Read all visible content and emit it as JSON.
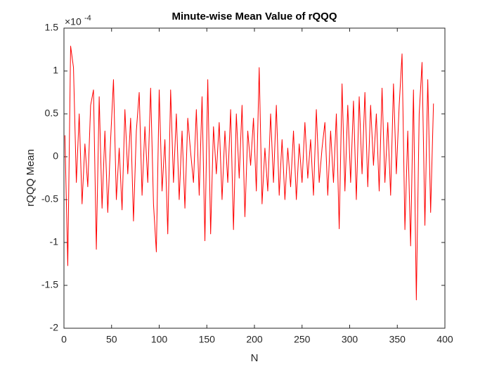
{
  "chart_data": {
    "type": "line",
    "title": "Minute-wise Mean Value of rQQQ",
    "x_label": "N",
    "y_label": "rQQQ Mean",
    "y_multiplier": {
      "base": "×10",
      "exponent": "-4"
    },
    "color": "#ff0000",
    "x": [
      1,
      4,
      7,
      10,
      13,
      16,
      19,
      22,
      25,
      28,
      31,
      34,
      37,
      40,
      43,
      46,
      49,
      52,
      55,
      58,
      61,
      64,
      67,
      70,
      73,
      76,
      79,
      82,
      85,
      88,
      91,
      94,
      97,
      100,
      103,
      106,
      109,
      112,
      115,
      118,
      121,
      124,
      127,
      130,
      133,
      136,
      139,
      142,
      145,
      148,
      151,
      154,
      157,
      160,
      163,
      166,
      169,
      172,
      175,
      178,
      181,
      184,
      187,
      190,
      193,
      196,
      199,
      202,
      205,
      208,
      211,
      214,
      217,
      220,
      223,
      226,
      229,
      232,
      235,
      238,
      241,
      244,
      247,
      250,
      253,
      256,
      259,
      262,
      265,
      268,
      271,
      274,
      277,
      280,
      283,
      286,
      289,
      292,
      295,
      298,
      301,
      304,
      307,
      310,
      313,
      316,
      319,
      322,
      325,
      328,
      331,
      334,
      337,
      340,
      343,
      346,
      349,
      352,
      355,
      358,
      361,
      364,
      367,
      370,
      373,
      376,
      379,
      382,
      385,
      388
    ],
    "values": [
      0.25,
      -1.27,
      1.29,
      1.04,
      -0.3,
      0.5,
      -0.55,
      0.15,
      -0.35,
      0.6,
      0.78,
      -1.08,
      0.7,
      -0.6,
      0.3,
      -0.65,
      0.2,
      0.9,
      -0.5,
      0.1,
      -0.62,
      0.55,
      -0.2,
      0.45,
      -0.75,
      0.3,
      0.75,
      -0.45,
      0.35,
      -0.3,
      0.8,
      -0.55,
      -1.11,
      0.78,
      -0.4,
      0.2,
      -0.9,
      0.78,
      -0.3,
      0.5,
      -0.5,
      0.3,
      -0.6,
      0.45,
      0.05,
      -0.3,
      0.55,
      -0.45,
      0.7,
      -0.98,
      0.9,
      -0.9,
      0.35,
      -0.2,
      0.4,
      -0.5,
      0.3,
      -0.3,
      0.55,
      -0.85,
      0.5,
      -0.25,
      0.6,
      -0.7,
      0.3,
      -0.1,
      0.45,
      -0.4,
      1.04,
      -0.55,
      0.1,
      -0.4,
      0.5,
      -0.3,
      0.6,
      -0.45,
      0.2,
      -0.5,
      0.1,
      -0.35,
      0.3,
      -0.5,
      0.15,
      -0.3,
      0.4,
      -0.25,
      0.2,
      -0.45,
      0.55,
      -0.3,
      0.1,
      0.4,
      -0.45,
      0.3,
      -0.3,
      0.5,
      -0.84,
      0.85,
      -0.4,
      0.6,
      -0.3,
      0.65,
      -0.5,
      0.7,
      -0.2,
      0.75,
      -0.35,
      0.6,
      -0.1,
      0.5,
      -0.4,
      0.8,
      -0.3,
      0.4,
      -0.45,
      0.85,
      -0.2,
      0.6,
      1.2,
      -0.85,
      0.3,
      -1.04,
      0.78,
      -1.67,
      0.5,
      1.1,
      -0.8,
      0.9,
      -0.65,
      0.62
    ],
    "xlim": [
      0,
      400
    ],
    "xticks": [
      0,
      50,
      100,
      150,
      200,
      250,
      300,
      350,
      400
    ],
    "ylim": [
      -2,
      1.5
    ],
    "yticks": [
      -2,
      -1.5,
      -1,
      -0.5,
      0,
      0.5,
      1,
      1.5
    ]
  }
}
